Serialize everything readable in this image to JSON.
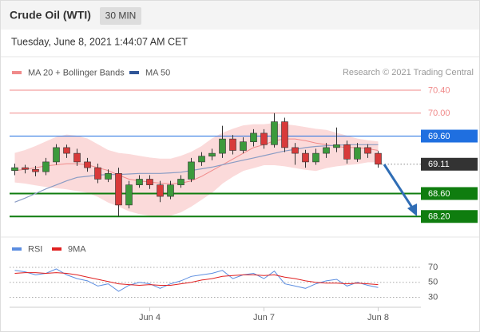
{
  "header": {
    "title": "Crude Oil (WTI)",
    "interval": "30 MIN",
    "timestamp": "Tuesday, June 8, 2021 1:44:07 AM CET"
  },
  "chart_data": [
    {
      "type": "candlestick",
      "attribution": "Research © 2021 Trading Central",
      "open": [
        69.0,
        69.05,
        69.02,
        68.98,
        69.15,
        69.4,
        69.3,
        69.15,
        69.05,
        68.85,
        68.95,
        68.4,
        68.75,
        68.85,
        68.75,
        68.55,
        68.75,
        68.85,
        69.15,
        69.25,
        69.3,
        69.55,
        69.35,
        69.5,
        69.65,
        69.45,
        69.85,
        69.4,
        69.3,
        69.15,
        69.3,
        69.4,
        69.45,
        69.2,
        69.4,
        69.3
      ],
      "high": [
        69.12,
        69.1,
        69.08,
        69.22,
        69.46,
        69.45,
        69.38,
        69.22,
        69.12,
        69.02,
        69.05,
        68.82,
        68.92,
        68.92,
        68.82,
        68.82,
        68.92,
        69.22,
        69.32,
        69.38,
        69.78,
        69.62,
        69.58,
        69.72,
        69.72,
        70.0,
        69.92,
        69.48,
        69.36,
        69.38,
        69.48,
        69.75,
        69.52,
        69.48,
        69.46,
        69.34
      ],
      "low": [
        68.92,
        68.95,
        68.9,
        68.92,
        69.1,
        69.22,
        69.08,
        68.98,
        68.78,
        68.8,
        68.2,
        68.34,
        68.7,
        68.68,
        68.45,
        68.5,
        68.7,
        68.8,
        69.08,
        69.18,
        69.22,
        69.28,
        69.3,
        69.42,
        69.38,
        69.4,
        69.32,
        69.1,
        69.05,
        69.1,
        69.22,
        69.32,
        69.12,
        69.15,
        69.22,
        69.05
      ],
      "close": [
        69.05,
        69.02,
        68.98,
        69.15,
        69.4,
        69.3,
        69.15,
        69.05,
        68.85,
        68.95,
        68.4,
        68.75,
        68.85,
        68.75,
        68.55,
        68.75,
        68.85,
        69.15,
        69.25,
        69.3,
        69.55,
        69.35,
        69.5,
        69.65,
        69.45,
        69.85,
        69.4,
        69.3,
        69.15,
        69.3,
        69.4,
        69.45,
        69.2,
        69.4,
        69.3,
        69.11
      ],
      "up_color": "#3c9a3c",
      "down_color": "#d83a3a",
      "series": [
        {
          "name": "MA 20 + Bollinger Bands",
          "color": "#f08a8a",
          "band_color": "#fbdada",
          "values": [
            69.0,
            69.02,
            69.05,
            69.08,
            69.1,
            69.12,
            69.12,
            69.1,
            69.05,
            69.0,
            68.92,
            68.85,
            68.82,
            68.8,
            68.78,
            68.77,
            68.78,
            68.82,
            68.9,
            69.0,
            69.1,
            69.2,
            69.3,
            69.4,
            69.45,
            69.52,
            69.55,
            69.55,
            69.52,
            69.48,
            69.45,
            69.42,
            69.4,
            69.4,
            69.38,
            69.35
          ],
          "upper": [
            69.3,
            69.35,
            69.42,
            69.5,
            69.58,
            69.62,
            69.6,
            69.55,
            69.45,
            69.35,
            69.3,
            69.28,
            69.25,
            69.22,
            69.2,
            69.2,
            69.25,
            69.32,
            69.42,
            69.55,
            69.65,
            69.72,
            69.78,
            69.8,
            69.8,
            69.82,
            69.8,
            69.78,
            69.75,
            69.72,
            69.7,
            69.65,
            69.6,
            69.55,
            69.52,
            69.5
          ],
          "lower": [
            68.8,
            68.78,
            68.75,
            68.72,
            68.7,
            68.68,
            68.65,
            68.62,
            68.55,
            68.45,
            68.38,
            68.3,
            68.25,
            68.22,
            68.2,
            68.22,
            68.28,
            68.38,
            68.5,
            68.62,
            68.78,
            68.9,
            69.0,
            69.05,
            69.1,
            69.1,
            69.08,
            69.05,
            69.02,
            69.0,
            69.05,
            69.08,
            69.1,
            69.12,
            69.15,
            69.15
          ]
        },
        {
          "name": "MA 50",
          "color": "#2f5597",
          "line_color": "#8a9cc4",
          "values": [
            68.45,
            68.52,
            68.6,
            68.68,
            68.75,
            68.82,
            68.88,
            68.9,
            68.92,
            68.93,
            68.93,
            68.94,
            68.95,
            68.95,
            68.95,
            68.96,
            68.97,
            69.0,
            69.03,
            69.06,
            69.1,
            69.14,
            69.18,
            69.22,
            69.26,
            69.3,
            69.34,
            69.37,
            69.4,
            69.42,
            69.43,
            69.44,
            69.45,
            69.45,
            69.45,
            69.45
          ]
        }
      ],
      "ylim": [
        67.87,
        70.58
      ],
      "levels": [
        {
          "value": 70.4,
          "label": "70.40",
          "color": "#f08a8a",
          "boxed": false,
          "width": 1
        },
        {
          "value": 70.0,
          "label": "70.00",
          "color": "#f08a8a",
          "boxed": false,
          "width": 1
        },
        {
          "value": 69.6,
          "label": "69.60",
          "color": "#1f6fe0",
          "boxed": true,
          "width": 1
        },
        {
          "value": 69.11,
          "label": "69.11",
          "color": "#333333",
          "boxed": true,
          "width": 1,
          "dotted": true
        },
        {
          "value": 68.6,
          "label": "68.60",
          "color": "#0f7d0f",
          "boxed": true,
          "width": 2
        },
        {
          "value": 68.2,
          "label": "68.20",
          "color": "#0f7d0f",
          "boxed": true,
          "width": 2
        }
      ]
    },
    {
      "type": "line",
      "categories": [
        null,
        null,
        null,
        null,
        null,
        null,
        null,
        null,
        null,
        null,
        null,
        null,
        null,
        "Jun 4",
        null,
        null,
        null,
        null,
        null,
        null,
        null,
        null,
        null,
        null,
        "Jun 7",
        null,
        null,
        null,
        null,
        null,
        null,
        null,
        null,
        null,
        null,
        "Jun 8"
      ],
      "series": [
        {
          "name": "RSI",
          "color": "#5b8de0",
          "values": [
            66,
            64,
            60,
            62,
            68,
            60,
            55,
            52,
            45,
            48,
            38,
            46,
            50,
            48,
            42,
            48,
            52,
            58,
            60,
            62,
            66,
            55,
            60,
            62,
            55,
            65,
            48,
            45,
            42,
            48,
            52,
            54,
            45,
            50,
            46,
            43
          ]
        },
        {
          "name": "9MA",
          "color": "#e02020",
          "values": [
            62,
            63,
            63,
            62,
            63,
            62,
            60,
            57,
            54,
            51,
            48,
            47,
            46,
            47,
            46,
            46,
            48,
            50,
            53,
            55,
            58,
            59,
            60,
            60,
            59,
            60,
            57,
            55,
            52,
            50,
            49,
            49,
            48,
            49,
            48,
            47
          ]
        }
      ],
      "ylim": [
        22,
        86
      ],
      "yticks": [
        30,
        50,
        70
      ]
    }
  ]
}
